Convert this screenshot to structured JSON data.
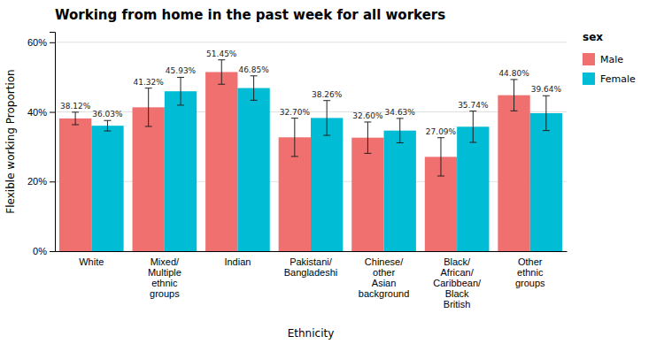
{
  "chart_data": {
    "type": "bar",
    "title": "Working from home in the past week for all workers",
    "xlabel": "Ethnicity",
    "ylabel": "Flexible working Proportion",
    "categories": [
      "White",
      "Mixed/\nMultiple\nethnic\ngroups",
      "Indian",
      "Pakistani/\nBangladeshi",
      "Chinese/\nother\nAsian\nbackground",
      "Black/\nAfrican/\nCaribbean/\nBlack\nBritish",
      "Other\nethnic\ngroups"
    ],
    "series": [
      {
        "name": "Male",
        "color": "#F07070",
        "values": [
          38.12,
          41.32,
          51.45,
          32.7,
          32.6,
          27.09,
          44.8
        ],
        "value_labels": [
          "38.12%",
          "41.32%",
          "51.45%",
          "32.70%",
          "32.60%",
          "27.09%",
          "44.80%"
        ],
        "errors_low": [
          1.8,
          5.5,
          3.5,
          5.5,
          4.5,
          5.5,
          4.5
        ],
        "errors_high": [
          1.8,
          5.5,
          3.5,
          5.5,
          4.5,
          5.5,
          4.5
        ]
      },
      {
        "name": "Female",
        "color": "#00BCD4",
        "values": [
          36.03,
          45.93,
          46.85,
          38.26,
          34.63,
          35.74,
          39.64
        ],
        "value_labels": [
          "36.03%",
          "45.93%",
          "46.85%",
          "38.26%",
          "34.63%",
          "35.74%",
          "39.64%"
        ],
        "errors_low": [
          1.5,
          4.0,
          3.5,
          5.0,
          3.5,
          4.5,
          5.0
        ],
        "errors_high": [
          1.5,
          4.0,
          3.5,
          5.0,
          3.5,
          4.5,
          5.0
        ]
      }
    ],
    "ylim": [
      0,
      63
    ],
    "yticks": [
      {
        "value": 0,
        "label": "0%"
      },
      {
        "value": 20,
        "label": "20%"
      },
      {
        "value": 40,
        "label": "40%"
      },
      {
        "value": 60,
        "label": "60%"
      }
    ],
    "grid": true,
    "legend": "right",
    "legend_title": "sex",
    "data_labels": true
  }
}
